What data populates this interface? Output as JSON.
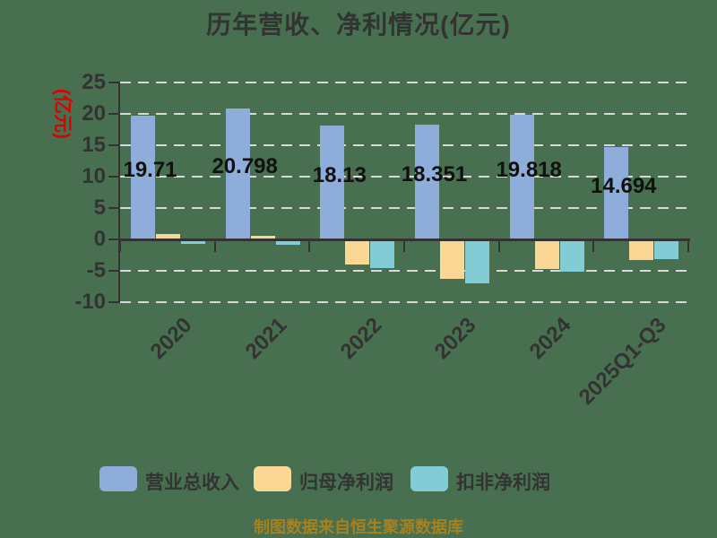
{
  "title": "历年营收、净利情况(亿元)",
  "footer": "制图数据来自恒生聚源数据库",
  "colors": {
    "background": "#487050",
    "title_text": "#333333",
    "axis": "#333333",
    "grid": "#D8D8D8",
    "y_axis_title": "#DD0000",
    "value_label": "#111111",
    "footer_text": "#A6811E",
    "series_revenue": "#8FADDB",
    "series_net_profit": "#FBD795",
    "series_non_gaap": "#82CDD5"
  },
  "chart_data": {
    "type": "bar",
    "title": "历年营收、净利情况(亿元)",
    "ylabel": "(亿元)",
    "xlabel": "",
    "categories": [
      "2020",
      "2021",
      "2022",
      "2023",
      "2024",
      "2025Q1-Q3"
    ],
    "series": [
      {
        "key": "revenue",
        "name": "营业总收入",
        "color": "#8FADDB",
        "values": [
          19.71,
          20.798,
          18.13,
          18.351,
          19.818,
          14.694
        ],
        "value_labels": [
          "19.71",
          "20.798",
          "18.13",
          "18.351",
          "19.818",
          "14.694"
        ]
      },
      {
        "key": "net-profit",
        "name": "归母净利润",
        "color": "#FBD795",
        "values": [
          0.9,
          0.6,
          -4.0,
          -6.3,
          -4.7,
          -3.3
        ],
        "value_labels": null
      },
      {
        "key": "non-gaap-net-profit",
        "name": "扣非净利润",
        "color": "#82CDD5",
        "values": [
          -0.7,
          -0.8,
          -4.5,
          -7.0,
          -5.2,
          -3.2
        ],
        "value_labels": null
      }
    ],
    "ylim": [
      -10,
      25
    ],
    "ytick_step": 5,
    "yticks": [
      25,
      20,
      15,
      10,
      5,
      0,
      -5,
      -10
    ],
    "grid": "dashed-horizontal",
    "legend_position": "bottom",
    "x_labels_rotation_deg": 45
  }
}
